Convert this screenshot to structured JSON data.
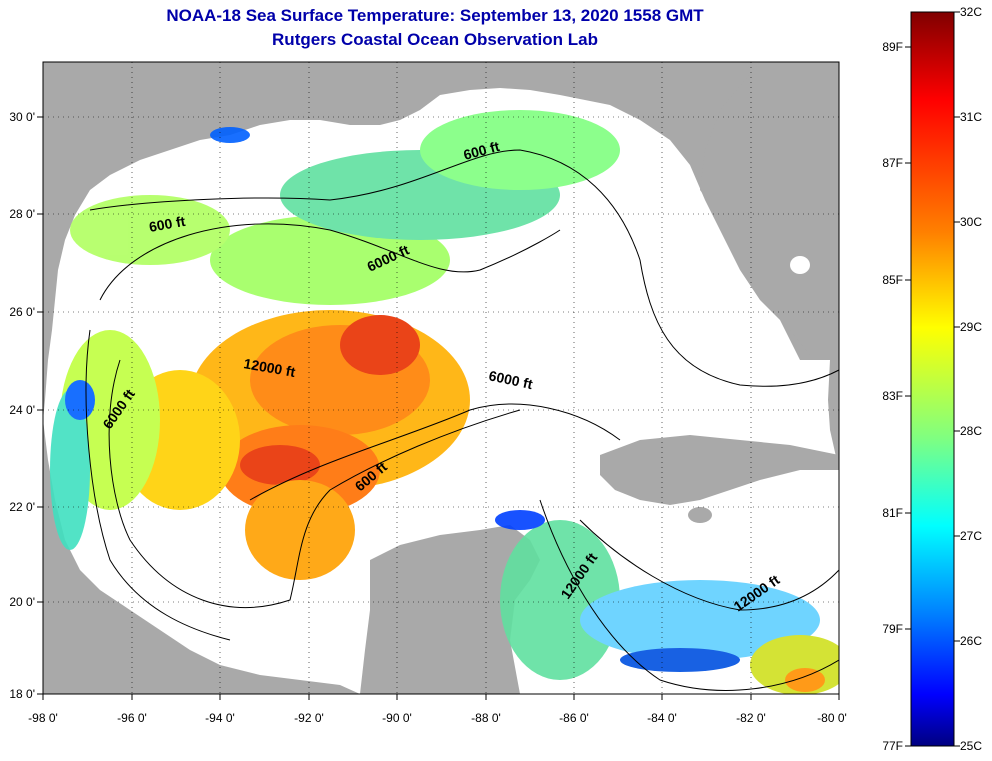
{
  "title": {
    "line1": "NOAA-18 Sea Surface Temperature:  September 13, 2020 1558 GMT",
    "line2": "Rutgers Coastal Ocean Observation Lab"
  },
  "map": {
    "lon_range": [
      -98,
      -80
    ],
    "lat_range": [
      18,
      31
    ],
    "x_ticks": [
      "-98 0'",
      "-96 0'",
      "-94 0'",
      "-92 0'",
      "-90 0'",
      "-88 0'",
      "-86 0'",
      "-84 0'",
      "-82 0'",
      "-80 0'"
    ],
    "y_ticks": [
      "30 0'",
      "28 0'",
      "26 0'",
      "24 0'",
      "22 0'",
      "20 0'",
      "18 0'"
    ],
    "land_color": "#a9a9a9",
    "contour_labels": [
      {
        "text": "600 ft"
      },
      {
        "text": "600 ft"
      },
      {
        "text": "6000 ft"
      },
      {
        "text": "12000 ft"
      },
      {
        "text": "6000 ft"
      },
      {
        "text": "6000 ft"
      },
      {
        "text": "600 ft"
      },
      {
        "text": "12000 ft"
      },
      {
        "text": "12000 ft"
      }
    ]
  },
  "colorbar": {
    "celsius_labels": [
      "32C",
      "31C",
      "30C",
      "29C",
      "28C",
      "27C",
      "26C",
      "25C"
    ],
    "fahrenheit_labels": [
      "89F",
      "87F",
      "85F",
      "83F",
      "81F",
      "79F",
      "77F"
    ],
    "colors": [
      "#800000",
      "#ff0000",
      "#ff8000",
      "#ffff00",
      "#80ff80",
      "#00ffff",
      "#0080ff",
      "#0000ff",
      "#000080"
    ]
  }
}
